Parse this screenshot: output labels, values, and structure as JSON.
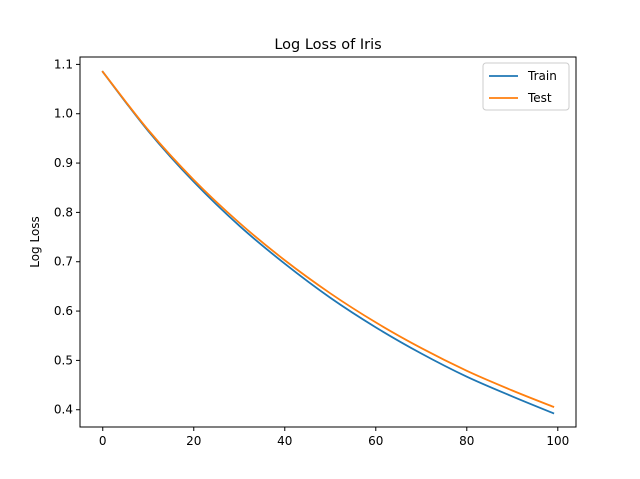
{
  "chart_data": {
    "type": "line",
    "title": "Log Loss of Iris",
    "xlabel": "",
    "ylabel": "Log Loss",
    "xlim": [
      -5,
      104
    ],
    "ylim": [
      0.365,
      1.115
    ],
    "xticks": [
      0,
      20,
      40,
      60,
      80,
      100
    ],
    "yticks": [
      0.4,
      0.5,
      0.6,
      0.7,
      0.8,
      0.9,
      1.0,
      1.1
    ],
    "x": [
      0,
      10,
      20,
      30,
      40,
      50,
      60,
      70,
      80,
      90,
      99
    ],
    "series": [
      {
        "name": "Train",
        "color": "#1f77b4",
        "values": [
          1.085,
          0.965,
          0.862,
          0.773,
          0.696,
          0.627,
          0.567,
          0.514,
          0.467,
          0.427,
          0.393
        ]
      },
      {
        "name": "Test",
        "color": "#ff7f0e",
        "values": [
          1.085,
          0.967,
          0.866,
          0.779,
          0.703,
          0.636,
          0.577,
          0.525,
          0.479,
          0.439,
          0.406
        ]
      }
    ],
    "legend_position": "top-right",
    "grid": false
  }
}
